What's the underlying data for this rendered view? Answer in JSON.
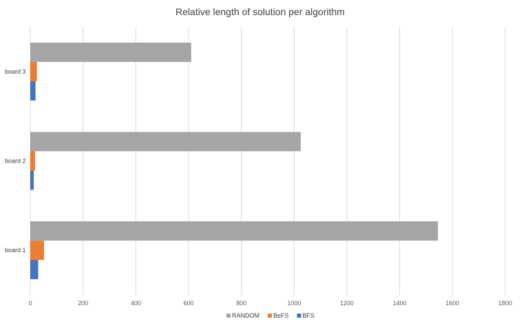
{
  "chart_data": {
    "type": "bar",
    "orientation": "horizontal",
    "title": "Relative length of solution per algorithm",
    "xlabel": "",
    "ylabel": "",
    "categories": [
      "board 3",
      "board 2",
      "board 1"
    ],
    "series": [
      {
        "name": "RANDOM",
        "color": "#a5a5a5",
        "values": [
          610,
          1025,
          1545
        ]
      },
      {
        "name": "BeFS",
        "color": "#ed7d31",
        "values": [
          25,
          18,
          52
        ]
      },
      {
        "name": "BFS",
        "color": "#4472c4",
        "values": [
          20,
          13,
          30
        ]
      }
    ],
    "xlim": [
      0,
      1800
    ],
    "xticks": [
      0,
      200,
      400,
      600,
      800,
      1000,
      1200,
      1400,
      1600,
      1800
    ],
    "grid": "vertical",
    "legend": "bottom"
  }
}
